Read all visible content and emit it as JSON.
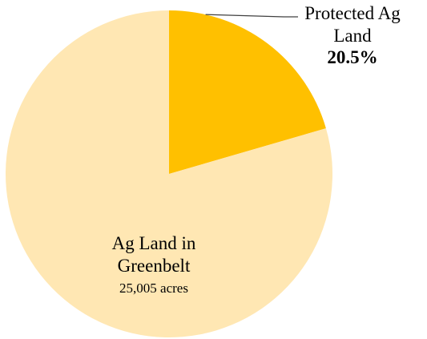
{
  "chart_data": {
    "type": "pie",
    "title": "",
    "slices": [
      {
        "label_line1": "Protected Ag",
        "label_line2": "Land",
        "value_label": "20.5%",
        "percent": 20.5,
        "color": "#FFC000"
      },
      {
        "label_line1": "Ag Land in",
        "label_line2": "Greenbelt",
        "value_label": "25,005 acres",
        "percent": 79.5,
        "color": "#FFE7B3"
      }
    ],
    "legend": "none",
    "start_angle_deg": 0,
    "direction": "clockwise"
  }
}
